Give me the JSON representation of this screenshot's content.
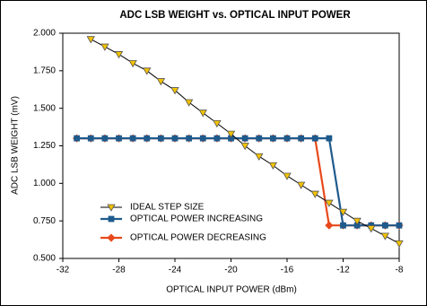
{
  "chart_data": {
    "type": "line",
    "title": "ADC LSB WEIGHT vs. OPTICAL INPUT POWER",
    "x_label": "OPTICAL INPUT POWER (dBm)",
    "y_label": "ADC LSB WEIGHT (mV)",
    "x": [
      -31,
      -30,
      -29,
      -28,
      -27,
      -26,
      -25,
      -24,
      -23,
      -22,
      -21,
      -20,
      -19,
      -18,
      -17,
      -16,
      -15,
      -14,
      -13,
      -12,
      -11,
      -10,
      -9,
      -8
    ],
    "xlim": [
      -32,
      -8
    ],
    "xticks": [
      -32,
      -28,
      -24,
      -20,
      -16,
      -12,
      -8
    ],
    "ylim": [
      0.5,
      2.0
    ],
    "yticks": [
      {
        "value": 0.5,
        "label": "0.500"
      },
      {
        "value": 0.75,
        "label": "0.750"
      },
      {
        "value": 1.0,
        "label": "1.000"
      },
      {
        "value": 1.25,
        "label": "1.250"
      },
      {
        "value": 1.5,
        "label": "1.500"
      },
      {
        "value": 1.75,
        "label": "1.750"
      },
      {
        "value": 2.0,
        "label": "2.000"
      }
    ],
    "grid": false,
    "series": [
      {
        "name": "IDEAL STEP SIZE",
        "color": "#f2c200",
        "line_color": "#000000",
        "marker": "triangle-down",
        "values": [
          null,
          1.96,
          1.91,
          1.86,
          1.8,
          1.75,
          1.68,
          1.62,
          1.54,
          1.47,
          1.4,
          1.33,
          1.25,
          1.18,
          1.12,
          1.05,
          0.99,
          0.93,
          0.87,
          0.81,
          0.75,
          0.7,
          0.65,
          0.6
        ]
      },
      {
        "name": "OPTICAL POWER INCREASING",
        "color": "#1f5a8c",
        "line_color": "#1f5a8c",
        "marker": "square",
        "values": [
          1.3,
          1.3,
          1.3,
          1.3,
          1.3,
          1.3,
          1.3,
          1.3,
          1.3,
          1.3,
          1.3,
          1.3,
          1.3,
          1.3,
          1.3,
          1.3,
          1.3,
          1.3,
          1.3,
          0.72,
          0.72,
          0.72,
          0.72,
          0.72
        ]
      },
      {
        "name": "OPTICAL POWER DECREASING",
        "color": "#e8491c",
        "line_color": "#e8491c",
        "marker": "diamond",
        "values": [
          1.3,
          1.3,
          1.3,
          1.3,
          1.3,
          1.3,
          1.3,
          1.3,
          1.3,
          1.3,
          1.3,
          1.3,
          1.3,
          1.3,
          1.3,
          1.3,
          1.3,
          1.3,
          0.72,
          0.72,
          0.72,
          0.72,
          0.72,
          0.72
        ]
      }
    ]
  }
}
